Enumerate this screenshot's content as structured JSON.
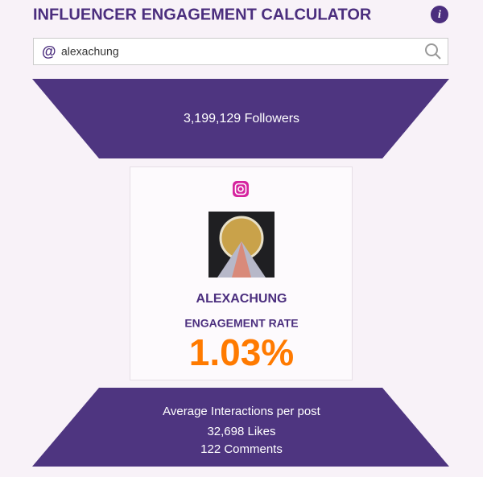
{
  "header": {
    "title": "INFLUENCER ENGAGEMENT CALCULATOR"
  },
  "search": {
    "prefix": "@",
    "value": "alexachung"
  },
  "followers": "3,199,129 Followers",
  "profile": {
    "username": "ALEXACHUNG",
    "metric_label": "ENGAGEMENT RATE",
    "rate": "1.03%"
  },
  "interactions": {
    "label": "Average Interactions per post",
    "likes": "32,698 Likes",
    "comments": "122 Comments"
  }
}
